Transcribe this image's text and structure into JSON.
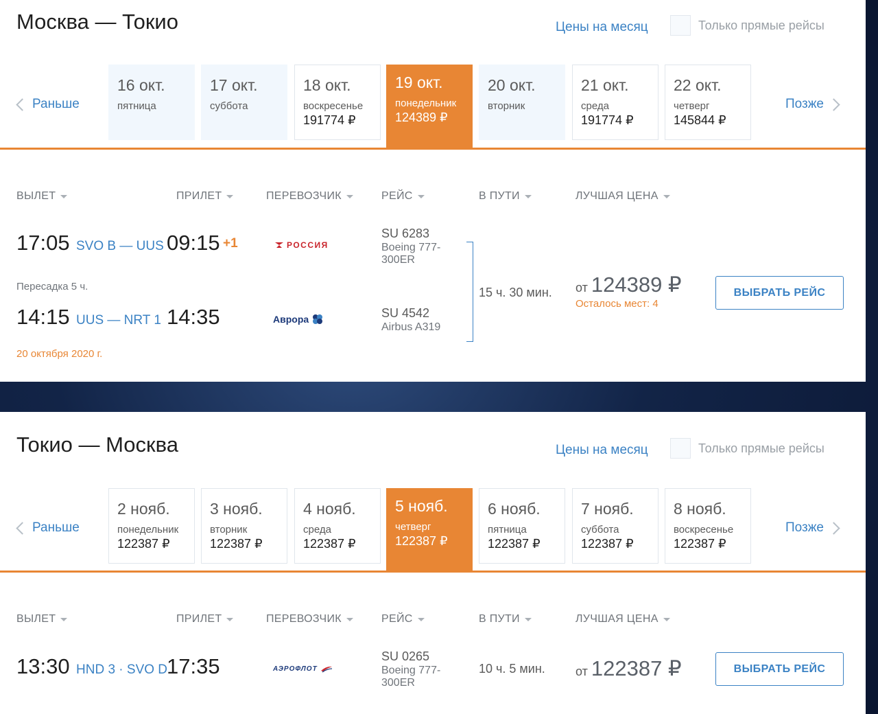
{
  "outbound": {
    "title": "Москва — Токио",
    "month_prices_link": "Цены на месяц",
    "direct_only_label": "Только прямые рейсы",
    "prev_label": "Раньше",
    "next_label": "Позже",
    "dates": [
      {
        "date": "16 окт.",
        "weekday": "пятница",
        "price": ""
      },
      {
        "date": "17 окт.",
        "weekday": "суббота",
        "price": ""
      },
      {
        "date": "18 окт.",
        "weekday": "воскресенье",
        "price": "191774 ₽"
      },
      {
        "date": "19 окт.",
        "weekday": "понедельник",
        "price": "124389 ₽"
      },
      {
        "date": "20 окт.",
        "weekday": "вторник",
        "price": ""
      },
      {
        "date": "21 окт.",
        "weekday": "среда",
        "price": "191774 ₽"
      },
      {
        "date": "22 окт.",
        "weekday": "четверг",
        "price": "145844 ₽"
      }
    ],
    "columns": {
      "departure": "ВЫЛЕТ",
      "arrival": "ПРИЛЕТ",
      "carrier": "ПЕРЕВОЗЧИК",
      "flight": "РЕЙС",
      "duration": "В ПУТИ",
      "best_price": "ЛУЧШАЯ ЦЕНА"
    },
    "segments": [
      {
        "dep_time": "17:05",
        "airports": "SVO B — UUS",
        "arr_time": "09:15",
        "plus_day": "+1",
        "carrier": "РОССИЯ",
        "flight_no": "SU 6283",
        "aircraft": "Boeing 777-300ER"
      },
      {
        "dep_time": "14:15",
        "airports": "UUS — NRT 1",
        "arr_time": "14:35",
        "carrier": "Аврора",
        "flight_no": "SU 4542",
        "aircraft": "Airbus A319"
      }
    ],
    "transfer": "Пересадка 5 ч.",
    "date_note": "20 октября 2020 г.",
    "duration": "15 ч. 30 мин.",
    "price_prefix": "от",
    "price": "124389 ₽",
    "seats_left": "Осталось мест: 4",
    "select_label": "ВЫБРАТЬ РЕЙС"
  },
  "return": {
    "title": "Токио — Москва",
    "month_prices_link": "Цены на месяц",
    "direct_only_label": "Только прямые рейсы",
    "prev_label": "Раньше",
    "next_label": "Позже",
    "dates": [
      {
        "date": "2 нояб.",
        "weekday": "понедельник",
        "price": "122387 ₽"
      },
      {
        "date": "3 нояб.",
        "weekday": "вторник",
        "price": "122387 ₽"
      },
      {
        "date": "4 нояб.",
        "weekday": "среда",
        "price": "122387 ₽"
      },
      {
        "date": "5 нояб.",
        "weekday": "четверг",
        "price": "122387 ₽"
      },
      {
        "date": "6 нояб.",
        "weekday": "пятница",
        "price": "122387 ₽"
      },
      {
        "date": "7 нояб.",
        "weekday": "суббота",
        "price": "122387 ₽"
      },
      {
        "date": "8 нояб.",
        "weekday": "воскресенье",
        "price": "122387 ₽"
      }
    ],
    "columns": {
      "departure": "ВЫЛЕТ",
      "arrival": "ПРИЛЕТ",
      "carrier": "ПЕРЕВОЗЧИК",
      "flight": "РЕЙС",
      "duration": "В ПУТИ",
      "best_price": "ЛУЧШАЯ ЦЕНА"
    },
    "segments": [
      {
        "dep_time": "13:30",
        "airports": "HND 3 · SVO D",
        "arr_time": "17:35",
        "carrier": "АЭРОФЛОТ",
        "flight_no": "SU 0265",
        "aircraft": "Boeing 777-300ER"
      }
    ],
    "duration": "10 ч. 5 мин.",
    "price_prefix": "от",
    "price": "122387 ₽",
    "select_label": "ВЫБРАТЬ РЕЙС"
  },
  "colors": {
    "accent_orange": "#e88634",
    "link_blue": "#3b82c4",
    "nodata_bg": "#f1f7fd"
  }
}
